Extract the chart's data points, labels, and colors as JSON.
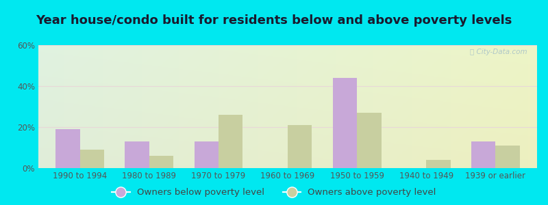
{
  "title": "Year house/condo built for residents below and above poverty levels",
  "categories": [
    "1990 to 1994",
    "1980 to 1989",
    "1970 to 1979",
    "1960 to 1969",
    "1950 to 1959",
    "1940 to 1949",
    "1939 or earlier"
  ],
  "below_poverty": [
    19,
    13,
    13,
    0,
    44,
    0,
    13
  ],
  "above_poverty": [
    9,
    6,
    26,
    21,
    27,
    4,
    11
  ],
  "below_color": "#c8a8d8",
  "above_color": "#c8cfa0",
  "bar_width": 0.35,
  "ylim": [
    0,
    60
  ],
  "yticks": [
    0,
    20,
    40,
    60
  ],
  "ytick_labels": [
    "0%",
    "20%",
    "40%",
    "60%"
  ],
  "legend_below": "Owners below poverty level",
  "legend_above": "Owners above poverty level",
  "outer_bg": "#00e8f0",
  "title_fontsize": 13,
  "tick_fontsize": 8.5,
  "legend_fontsize": 9.5,
  "watermark": "City-Data.com"
}
